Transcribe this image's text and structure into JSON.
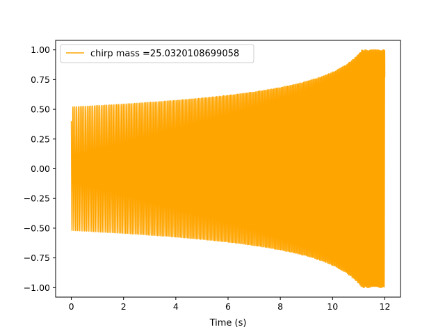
{
  "chart_data": {
    "type": "line",
    "title": "",
    "xlabel": "Time (s)",
    "ylabel": "",
    "xlim": [
      -0.6,
      12.6
    ],
    "ylim": [
      -1.08,
      1.08
    ],
    "xticks": [
      0,
      2,
      4,
      6,
      8,
      10,
      12
    ],
    "xtick_labels": [
      "0",
      "2",
      "4",
      "6",
      "8",
      "10",
      "12"
    ],
    "yticks": [
      1.0,
      0.75,
      0.5,
      0.25,
      0.0,
      -0.25,
      -0.5,
      -0.75,
      -1.0
    ],
    "ytick_labels": [
      "1.00",
      "0.75",
      "0.50",
      "0.25",
      "0.00",
      "−0.25",
      "−0.50",
      "−0.75",
      "−1.00"
    ],
    "grid": false,
    "legend_position": "top-left",
    "series": [
      {
        "name": "chirp mass =25.0320108699058",
        "color": "#ffa500",
        "x_start": 0,
        "x_end": 12,
        "initial_value": 0.4,
        "envelope_start": 0.52,
        "envelope_end": 1.0,
        "cycles": 230
      }
    ]
  }
}
